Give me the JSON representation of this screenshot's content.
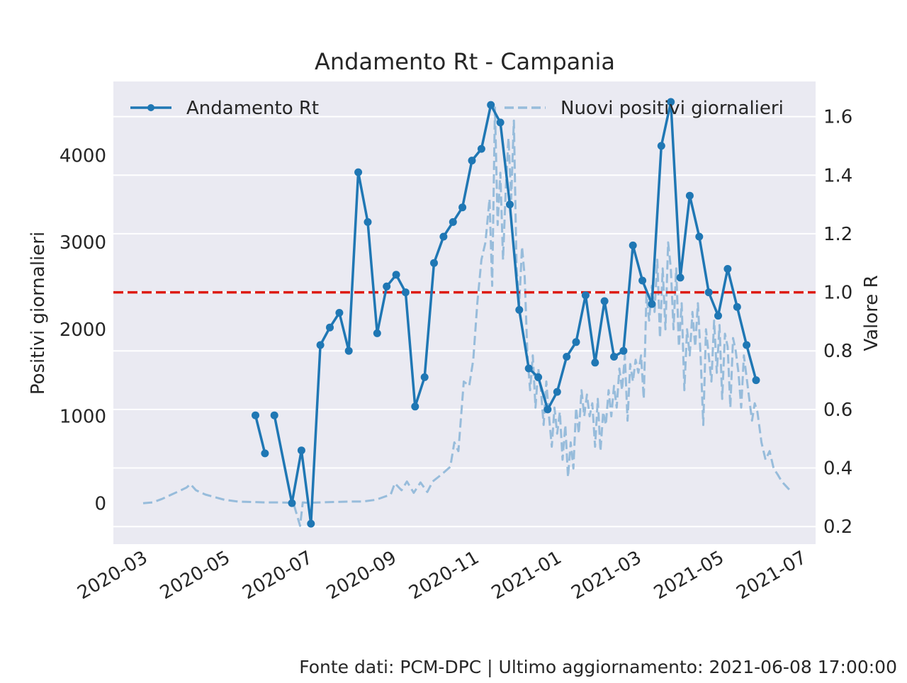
{
  "chart_data": {
    "type": "line",
    "title": "Andamento Rt - Campania",
    "ylabel_left": "Positivi giornalieri",
    "ylabel_right": "Valore R",
    "footer": "Fonte dati: PCM-DPC | Ultimo aggiornamento: 2021-06-08 17:00:00",
    "x_ticks": [
      "2020-03",
      "2020-05",
      "2020-07",
      "2020-09",
      "2020-11",
      "2021-01",
      "2021-03",
      "2021-05",
      "2021-07"
    ],
    "y_left_ticks": [
      "0",
      "1000",
      "2000",
      "3000",
      "4000"
    ],
    "y_right_ticks": [
      "0.2",
      "0.4",
      "0.6",
      "0.8",
      "1.0",
      "1.2",
      "1.4",
      "1.6"
    ],
    "ylim_left": [
      -470,
      4850
    ],
    "ylim_right": [
      0.14,
      1.72
    ],
    "xlim": [
      "2020-02-08",
      "2021-07-11"
    ],
    "threshold": 1.0,
    "grid": true,
    "legend": {
      "position": "top",
      "rt_label": "Andamento Rt",
      "positives_label": "Nuovi positivi giornalieri"
    },
    "colors": {
      "rt": "#1f77b4",
      "positives": "#97bcdb",
      "threshold": "#dd1a10",
      "background": "#eaeaf2",
      "grid": "#ffffff"
    },
    "rt_segments": [
      [
        [
          "2020-05-23",
          0.58
        ],
        [
          "2020-05-30",
          0.45
        ]
      ],
      [
        [
          "2020-06-06",
          0.58
        ],
        [
          "2020-06-19",
          0.28
        ],
        [
          "2020-06-26",
          0.46
        ],
        [
          "2020-07-03",
          0.21
        ],
        [
          "2020-07-10",
          0.82
        ],
        [
          "2020-07-17",
          0.88
        ],
        [
          "2020-07-24",
          0.93
        ],
        [
          "2020-07-31",
          0.8
        ],
        [
          "2020-08-07",
          1.41
        ],
        [
          "2020-08-14",
          1.24
        ],
        [
          "2020-08-21",
          0.86
        ],
        [
          "2020-08-28",
          1.02
        ],
        [
          "2020-09-04",
          1.06
        ],
        [
          "2020-09-11",
          1.0
        ],
        [
          "2020-09-18",
          0.61
        ],
        [
          "2020-09-25",
          0.71
        ],
        [
          "2020-10-02",
          1.1
        ],
        [
          "2020-10-09",
          1.19
        ],
        [
          "2020-10-16",
          1.24
        ],
        [
          "2020-10-23",
          1.29
        ],
        [
          "2020-10-30",
          1.45
        ],
        [
          "2020-11-06",
          1.49
        ],
        [
          "2020-11-13",
          1.64
        ],
        [
          "2020-11-20",
          1.58
        ],
        [
          "2020-11-27",
          1.3
        ],
        [
          "2020-12-04",
          0.94
        ],
        [
          "2020-12-11",
          0.74
        ],
        [
          "2020-12-18",
          0.71
        ],
        [
          "2020-12-25",
          0.6
        ],
        [
          "2021-01-01",
          0.66
        ],
        [
          "2021-01-08",
          0.78
        ],
        [
          "2021-01-15",
          0.83
        ],
        [
          "2021-01-22",
          0.99
        ],
        [
          "2021-01-29",
          0.76
        ],
        [
          "2021-02-05",
          0.97
        ],
        [
          "2021-02-12",
          0.78
        ],
        [
          "2021-02-19",
          0.8
        ],
        [
          "2021-02-26",
          1.16
        ],
        [
          "2021-03-05",
          1.04
        ],
        [
          "2021-03-12",
          0.96
        ],
        [
          "2021-03-19",
          1.5
        ],
        [
          "2021-03-26",
          1.65
        ],
        [
          "2021-04-02",
          1.05
        ],
        [
          "2021-04-09",
          1.33
        ],
        [
          "2021-04-16",
          1.19
        ],
        [
          "2021-04-23",
          1.0
        ],
        [
          "2021-04-30",
          0.92
        ],
        [
          "2021-05-07",
          1.08
        ],
        [
          "2021-05-14",
          0.95
        ],
        [
          "2021-05-21",
          0.82
        ],
        [
          "2021-05-28",
          0.7
        ]
      ]
    ],
    "positives": [
      [
        "2020-03-01",
        0
      ],
      [
        "2020-03-08",
        10
      ],
      [
        "2020-03-15",
        50
      ],
      [
        "2020-03-22",
        100
      ],
      [
        "2020-03-29",
        150
      ],
      [
        "2020-04-02",
        180
      ],
      [
        "2020-04-05",
        220
      ],
      [
        "2020-04-09",
        150
      ],
      [
        "2020-04-16",
        100
      ],
      [
        "2020-04-23",
        70
      ],
      [
        "2020-04-30",
        40
      ],
      [
        "2020-05-10",
        20
      ],
      [
        "2020-05-20",
        15
      ],
      [
        "2020-05-30",
        10
      ],
      [
        "2020-06-10",
        10
      ],
      [
        "2020-06-20",
        5
      ],
      [
        "2020-06-25",
        -260
      ],
      [
        "2020-06-27",
        10
      ],
      [
        "2020-07-01",
        5
      ],
      [
        "2020-07-10",
        10
      ],
      [
        "2020-07-20",
        15
      ],
      [
        "2020-07-31",
        20
      ],
      [
        "2020-08-10",
        20
      ],
      [
        "2020-08-20",
        40
      ],
      [
        "2020-08-31",
        100
      ],
      [
        "2020-09-03",
        230
      ],
      [
        "2020-09-08",
        150
      ],
      [
        "2020-09-12",
        250
      ],
      [
        "2020-09-17",
        120
      ],
      [
        "2020-09-22",
        240
      ],
      [
        "2020-09-27",
        130
      ],
      [
        "2020-10-01",
        250
      ],
      [
        "2020-10-05",
        300
      ],
      [
        "2020-10-09",
        350
      ],
      [
        "2020-10-14",
        420
      ],
      [
        "2020-10-17",
        700
      ],
      [
        "2020-10-20",
        600
      ],
      [
        "2020-10-24",
        1400
      ],
      [
        "2020-10-28",
        1350
      ],
      [
        "2020-10-31",
        1650
      ],
      [
        "2020-11-03",
        2300
      ],
      [
        "2020-11-06",
        2800
      ],
      [
        "2020-11-09",
        3000
      ],
      [
        "2020-11-12",
        3500
      ],
      [
        "2020-11-14",
        2500
      ],
      [
        "2020-11-16",
        4550
      ],
      [
        "2020-11-18",
        3200
      ],
      [
        "2020-11-20",
        3800
      ],
      [
        "2020-11-22",
        2800
      ],
      [
        "2020-11-24",
        3600
      ],
      [
        "2020-11-26",
        4200
      ],
      [
        "2020-11-28",
        3500
      ],
      [
        "2020-11-30",
        4400
      ],
      [
        "2020-12-02",
        2700
      ],
      [
        "2020-12-04",
        2300
      ],
      [
        "2020-12-06",
        2950
      ],
      [
        "2020-12-08",
        2600
      ],
      [
        "2020-12-10",
        1700
      ],
      [
        "2020-12-12",
        1300
      ],
      [
        "2020-12-14",
        1700
      ],
      [
        "2020-12-16",
        1100
      ],
      [
        "2020-12-18",
        1550
      ],
      [
        "2020-12-20",
        1300
      ],
      [
        "2020-12-22",
        900
      ],
      [
        "2020-12-24",
        1400
      ],
      [
        "2020-12-26",
        1000
      ],
      [
        "2020-12-28",
        650
      ],
      [
        "2020-12-30",
        1100
      ],
      [
        "2021-01-01",
        800
      ],
      [
        "2021-01-03",
        1050
      ],
      [
        "2021-01-05",
        500
      ],
      [
        "2021-01-07",
        900
      ],
      [
        "2021-01-09",
        300
      ],
      [
        "2021-01-11",
        700
      ],
      [
        "2021-01-13",
        400
      ],
      [
        "2021-01-15",
        1100
      ],
      [
        "2021-01-17",
        800
      ],
      [
        "2021-01-19",
        1300
      ],
      [
        "2021-01-21",
        1000
      ],
      [
        "2021-01-23",
        1250
      ],
      [
        "2021-01-25",
        1000
      ],
      [
        "2021-01-27",
        1150
      ],
      [
        "2021-01-29",
        650
      ],
      [
        "2021-01-31",
        1200
      ],
      [
        "2021-02-02",
        600
      ],
      [
        "2021-02-04",
        1050
      ],
      [
        "2021-02-06",
        900
      ],
      [
        "2021-02-08",
        1300
      ],
      [
        "2021-02-10",
        1000
      ],
      [
        "2021-02-12",
        1350
      ],
      [
        "2021-02-14",
        1100
      ],
      [
        "2021-02-16",
        1550
      ],
      [
        "2021-02-18",
        1300
      ],
      [
        "2021-02-20",
        1700
      ],
      [
        "2021-02-22",
        950
      ],
      [
        "2021-02-24",
        1600
      ],
      [
        "2021-02-26",
        1400
      ],
      [
        "2021-02-28",
        1650
      ],
      [
        "2021-03-02",
        1500
      ],
      [
        "2021-03-04",
        1700
      ],
      [
        "2021-03-06",
        1200
      ],
      [
        "2021-03-08",
        2400
      ],
      [
        "2021-03-10",
        2100
      ],
      [
        "2021-03-12",
        2500
      ],
      [
        "2021-03-14",
        2200
      ],
      [
        "2021-03-16",
        2800
      ],
      [
        "2021-03-18",
        1900
      ],
      [
        "2021-03-20",
        2700
      ],
      [
        "2021-03-22",
        2000
      ],
      [
        "2021-03-24",
        3000
      ],
      [
        "2021-03-26",
        2700
      ],
      [
        "2021-03-28",
        2000
      ],
      [
        "2021-03-30",
        2700
      ],
      [
        "2021-04-01",
        1800
      ],
      [
        "2021-04-03",
        2300
      ],
      [
        "2021-04-05",
        1300
      ],
      [
        "2021-04-07",
        2000
      ],
      [
        "2021-04-09",
        1700
      ],
      [
        "2021-04-11",
        2200
      ],
      [
        "2021-04-13",
        1800
      ],
      [
        "2021-04-15",
        2300
      ],
      [
        "2021-04-17",
        1700
      ],
      [
        "2021-04-19",
        900
      ],
      [
        "2021-04-21",
        2000
      ],
      [
        "2021-04-23",
        1700
      ],
      [
        "2021-04-25",
        1400
      ],
      [
        "2021-04-27",
        2100
      ],
      [
        "2021-04-29",
        1500
      ],
      [
        "2021-05-01",
        2050
      ],
      [
        "2021-05-03",
        1200
      ],
      [
        "2021-05-05",
        1950
      ],
      [
        "2021-05-07",
        1800
      ],
      [
        "2021-05-09",
        1100
      ],
      [
        "2021-05-11",
        1900
      ],
      [
        "2021-05-13",
        1750
      ],
      [
        "2021-05-15",
        1500
      ],
      [
        "2021-05-17",
        1100
      ],
      [
        "2021-05-19",
        1700
      ],
      [
        "2021-05-21",
        1450
      ],
      [
        "2021-05-23",
        1200
      ],
      [
        "2021-05-25",
        950
      ],
      [
        "2021-05-27",
        1150
      ],
      [
        "2021-05-29",
        1050
      ],
      [
        "2021-06-01",
        700
      ],
      [
        "2021-06-04",
        500
      ],
      [
        "2021-06-07",
        600
      ],
      [
        "2021-06-10",
        400
      ],
      [
        "2021-06-13",
        330
      ],
      [
        "2021-06-16",
        250
      ],
      [
        "2021-06-19",
        200
      ],
      [
        "2021-06-22",
        150
      ]
    ]
  }
}
